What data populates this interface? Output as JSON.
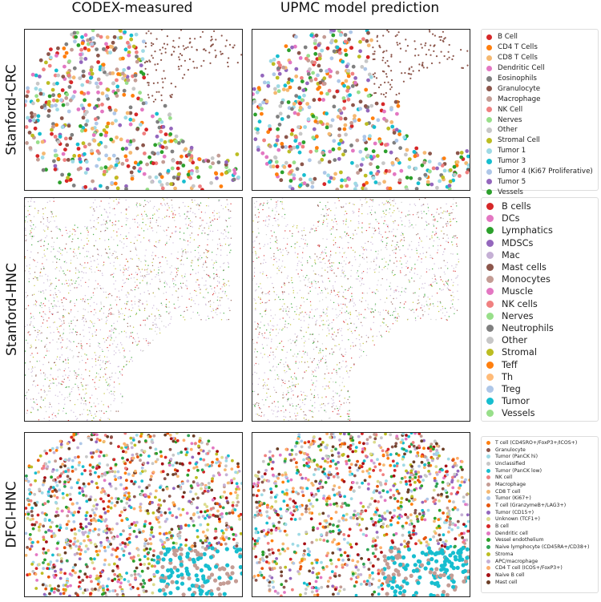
{
  "columns": {
    "measured": "CODEX-measured",
    "predicted": "UPMC model prediction"
  },
  "rows": [
    {
      "id": "stanford-crc",
      "title": "Stanford-CRC",
      "legend": [
        {
          "label": "B Cell",
          "color": "#d62728"
        },
        {
          "label": "CD4 T Cells",
          "color": "#ff7f0e"
        },
        {
          "label": "CD8 T Cells",
          "color": "#f5b871"
        },
        {
          "label": "Dendritic Cell",
          "color": "#e377c2"
        },
        {
          "label": "Eosinophils",
          "color": "#7f7f7f"
        },
        {
          "label": "Granulocyte",
          "color": "#8c564b"
        },
        {
          "label": "Macrophage",
          "color": "#c49c94"
        },
        {
          "label": "NK Cell",
          "color": "#f08080"
        },
        {
          "label": "Nerves",
          "color": "#98df8a"
        },
        {
          "label": "Other",
          "color": "#c7c7c7"
        },
        {
          "label": "Stromal Cell",
          "color": "#bcbd22"
        },
        {
          "label": "Tumor 1",
          "color": "#9edae5"
        },
        {
          "label": "Tumor 3",
          "color": "#17becf"
        },
        {
          "label": "Tumor 4 (Ki67 Proliferative)",
          "color": "#aec7e8"
        },
        {
          "label": "Tumor 5",
          "color": "#9467bd"
        },
        {
          "label": "Vessels",
          "color": "#2ca02c"
        }
      ]
    },
    {
      "id": "stanford-hnc",
      "title": "Stanford-HNC",
      "legend": [
        {
          "label": "B cells",
          "color": "#d62728"
        },
        {
          "label": "DCs",
          "color": "#e377c2"
        },
        {
          "label": "Lymphatics",
          "color": "#2ca02c"
        },
        {
          "label": "MDSCs",
          "color": "#9467bd"
        },
        {
          "label": "Mac",
          "color": "#c5b0d5"
        },
        {
          "label": "Mast cells",
          "color": "#8c564b"
        },
        {
          "label": "Monocytes",
          "color": "#c49c94"
        },
        {
          "label": "Muscle",
          "color": "#e377c2"
        },
        {
          "label": "NK cells",
          "color": "#f08080"
        },
        {
          "label": "Nerves",
          "color": "#98df8a"
        },
        {
          "label": "Neutrophils",
          "color": "#7f7f7f"
        },
        {
          "label": "Other",
          "color": "#c7c7c7"
        },
        {
          "label": "Stromal",
          "color": "#bcbd22"
        },
        {
          "label": "Teff",
          "color": "#ff7f0e"
        },
        {
          "label": "Th",
          "color": "#ffbb78"
        },
        {
          "label": "Treg",
          "color": "#aec7e8"
        },
        {
          "label": "Tumor",
          "color": "#17becf"
        },
        {
          "label": "Vessels",
          "color": "#98df8a"
        }
      ]
    },
    {
      "id": "dfci-hnc",
      "title": "DFCI-HNC",
      "legend": [
        {
          "label": "T cell (CD45RO+/FoxP3+/ICOS+)",
          "color": "#ff7f0e"
        },
        {
          "label": "Granulocyte",
          "color": "#8c564b"
        },
        {
          "label": "Tumor (PanCK hi)",
          "color": "#9edae5"
        },
        {
          "label": "Unclassified",
          "color": "#c7c7c7"
        },
        {
          "label": "Tumor (PanCK low)",
          "color": "#17becf"
        },
        {
          "label": "NK cell",
          "color": "#f08080"
        },
        {
          "label": "Macrophage",
          "color": "#c49c94"
        },
        {
          "label": "CD8 T cell",
          "color": "#f5b871"
        },
        {
          "label": "Tumor (Ki67+)",
          "color": "#aec7e8"
        },
        {
          "label": "T cell (GranzymeB+/LAG3+)",
          "color": "#e6550d"
        },
        {
          "label": "Tumor (CD15+)",
          "color": "#9467bd"
        },
        {
          "label": "Unknown (TCF1+)",
          "color": "#dbdb8d"
        },
        {
          "label": "B cell",
          "color": "#d62728"
        },
        {
          "label": "Dendritic cell",
          "color": "#e377c2"
        },
        {
          "label": "Vessel endothelium",
          "color": "#2ca02c"
        },
        {
          "label": "Naive lymphocyte (CD45RA+/CD38+)",
          "color": "#31a354"
        },
        {
          "label": "Stroma",
          "color": "#bcbd22"
        },
        {
          "label": "APC/macrophage",
          "color": "#c5b0d5"
        },
        {
          "label": "CD4 T cell (ICOS+/FoxP3+)",
          "color": "#fdae6b"
        },
        {
          "label": "Naive B cell",
          "color": "#a50f15"
        },
        {
          "label": "Mast cell",
          "color": "#6b3e26"
        }
      ]
    }
  ]
}
